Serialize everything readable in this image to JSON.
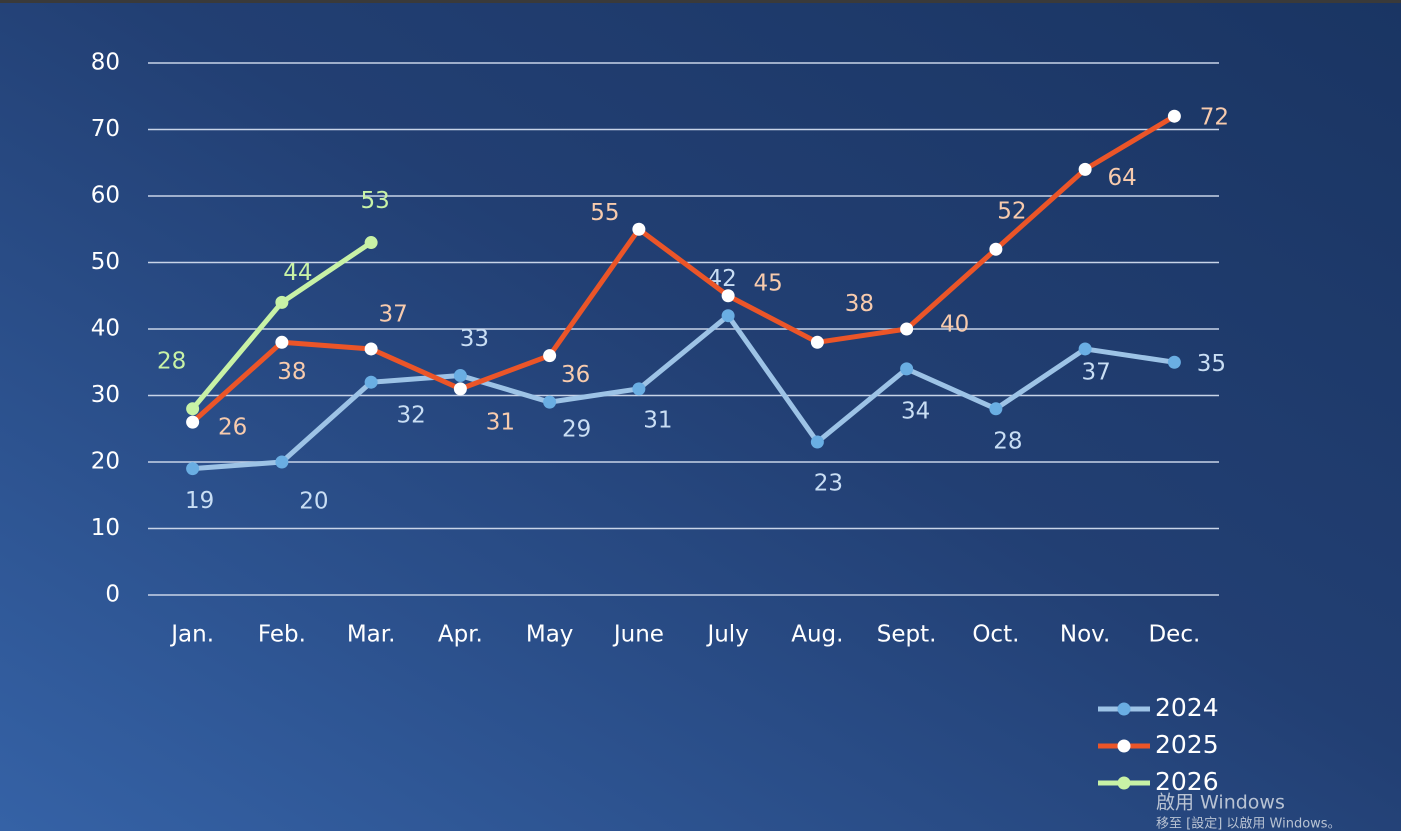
{
  "chart_data": {
    "type": "line",
    "categories": [
      "Jan.",
      "Feb.",
      "Mar.",
      "Apr.",
      "May",
      "June",
      "July",
      "Aug.",
      "Sept.",
      "Oct.",
      "Nov.",
      "Dec."
    ],
    "series": [
      {
        "name": "2024",
        "color": "#9dc3e6",
        "marker_color": "#6aaee3",
        "label_color": "#c9def4",
        "values": [
          19,
          20,
          32,
          33,
          29,
          31,
          42,
          23,
          34,
          28,
          37,
          35
        ]
      },
      {
        "name": "2025",
        "color": "#eb5528",
        "marker_color": "#ffffff",
        "label_color": "#f8cbad",
        "values": [
          26,
          38,
          37,
          31,
          36,
          55,
          45,
          38,
          40,
          52,
          64,
          72
        ]
      },
      {
        "name": "2026",
        "color": "#c8f2a6",
        "marker_color": "#c8f2a6",
        "label_color": "#c8f2a6",
        "values": [
          28,
          44,
          53,
          null,
          null,
          null,
          null,
          null,
          null,
          null,
          null,
          null
        ]
      }
    ],
    "ylim": [
      0,
      80
    ],
    "yticks": [
      0,
      10,
      20,
      30,
      40,
      50,
      60,
      70,
      80
    ],
    "grid": true,
    "legend": "bottom-right"
  },
  "watermark": {
    "title": "啟用 Windows",
    "subtitle": "移至 [設定] 以啟用 Windows。"
  }
}
